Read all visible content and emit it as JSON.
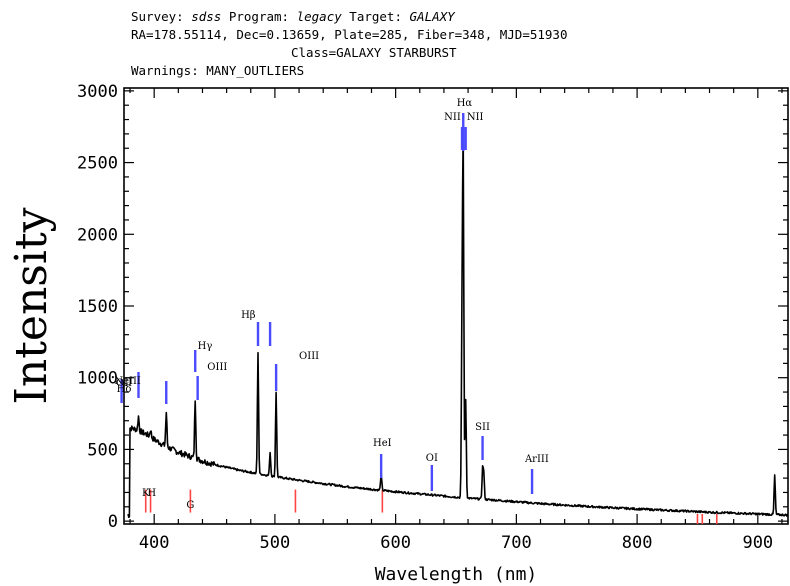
{
  "header": {
    "survey_label": "Survey:",
    "survey": "sdss",
    "program_label": "Program:",
    "program": "legacy",
    "target_label": "Target:",
    "target": "GALAXY",
    "coords": "RA=178.55114, Dec=0.13659, Plate=285, Fiber=348, MJD=51930",
    "class": "Class=GALAXY STARBURST",
    "warnings": "Warnings: MANY_OUTLIERS"
  },
  "chart_data": {
    "type": "line",
    "title": "",
    "xlabel": "Wavelength (nm)",
    "ylabel": "Intensity",
    "xlim": [
      375,
      925
    ],
    "ylim": [
      -20,
      3020
    ],
    "xticks": [
      400,
      500,
      600,
      700,
      800,
      900
    ],
    "yticks": [
      0,
      500,
      1000,
      1500,
      2000,
      2500,
      3000
    ],
    "grid": false,
    "series_color": "#000000",
    "continuum": [
      [
        380,
        650
      ],
      [
        385,
        640
      ],
      [
        390,
        620
      ],
      [
        395,
        600
      ],
      [
        400,
        570
      ],
      [
        410,
        520
      ],
      [
        420,
        480
      ],
      [
        430,
        450
      ],
      [
        440,
        420
      ],
      [
        450,
        395
      ],
      [
        460,
        375
      ],
      [
        470,
        355
      ],
      [
        480,
        340
      ],
      [
        490,
        325
      ],
      [
        500,
        310
      ],
      [
        520,
        285
      ],
      [
        540,
        262
      ],
      [
        560,
        240
      ],
      [
        580,
        222
      ],
      [
        600,
        205
      ],
      [
        620,
        190
      ],
      [
        640,
        175
      ],
      [
        660,
        160
      ],
      [
        680,
        148
      ],
      [
        700,
        135
      ],
      [
        720,
        122
      ],
      [
        740,
        112
      ],
      [
        760,
        102
      ],
      [
        780,
        93
      ],
      [
        800,
        85
      ],
      [
        820,
        77
      ],
      [
        840,
        70
      ],
      [
        860,
        62
      ],
      [
        880,
        56
      ],
      [
        900,
        50
      ],
      [
        920,
        44
      ],
      [
        925,
        42
      ]
    ],
    "emission_peaks": [
      {
        "x": 373,
        "y": 690
      },
      {
        "x": 387,
        "y": 730
      },
      {
        "x": 397,
        "y": 640
      },
      {
        "x": 410,
        "y": 760
      },
      {
        "x": 434,
        "y": 850
      },
      {
        "x": 486,
        "y": 1170
      },
      {
        "x": 496,
        "y": 480
      },
      {
        "x": 501,
        "y": 900
      },
      {
        "x": 588,
        "y": 320
      },
      {
        "x": 655,
        "y": 1350
      },
      {
        "x": 656,
        "y": 2560
      },
      {
        "x": 658,
        "y": 850
      },
      {
        "x": 672,
        "y": 360
      },
      {
        "x": 673,
        "y": 320
      },
      {
        "x": 914,
        "y": 320
      }
    ],
    "emission_lines": [
      {
        "label": "OII",
        "x": 373,
        "color": "#4a4aff"
      },
      {
        "label": "NeIII",
        "x": 387,
        "color": "#4a4aff"
      },
      {
        "label": "Hδ",
        "x": 410,
        "color": "#4a4aff"
      },
      {
        "label": "Hγ",
        "x": 434,
        "color": "#4a4aff"
      },
      {
        "label": "OIII",
        "x": 436,
        "color": "#4a4aff"
      },
      {
        "label": "Hβ",
        "x": 486,
        "color": "#4a4aff"
      },
      {
        "label": "OIII",
        "x": 496,
        "color": "#4a4aff"
      },
      {
        "label": "OIII",
        "x": 501,
        "color": "#4a4aff"
      },
      {
        "label": "HeI",
        "x": 588,
        "color": "#4a4aff"
      },
      {
        "label": "OI",
        "x": 630,
        "color": "#4a4aff"
      },
      {
        "label": "NII",
        "x": 655,
        "color": "#4a4aff"
      },
      {
        "label": "Hα",
        "x": 656,
        "color": "#4a4aff"
      },
      {
        "label": "NII",
        "x": 658,
        "color": "#4a4aff"
      },
      {
        "label": "SII",
        "x": 672,
        "color": "#4a4aff"
      },
      {
        "label": "ArIII",
        "x": 713,
        "color": "#4a4aff"
      }
    ],
    "absorption_lines": [
      {
        "label": "K",
        "x": 393,
        "color": "#ff4444"
      },
      {
        "label": "H",
        "x": 397,
        "color": "#ff4444"
      },
      {
        "label": "G",
        "x": 430,
        "color": "#ff4444"
      },
      {
        "label": "",
        "x": 517,
        "color": "#ff4444"
      },
      {
        "label": "",
        "x": 589,
        "color": "#ff4444"
      },
      {
        "label": "",
        "x": 850,
        "color": "#ff4444"
      },
      {
        "label": "",
        "x": 854,
        "color": "#ff4444"
      },
      {
        "label": "",
        "x": 866,
        "color": "#ff4444"
      }
    ]
  }
}
